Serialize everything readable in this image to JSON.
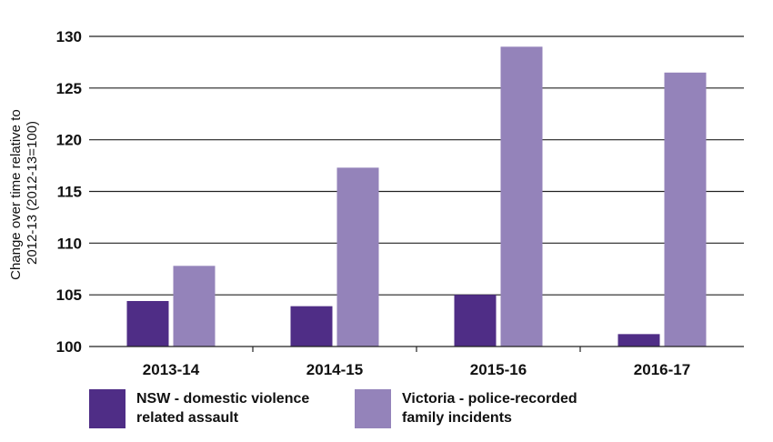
{
  "chart_data": {
    "type": "bar",
    "categories": [
      "2013-14",
      "2014-15",
      "2015-16",
      "2016-17"
    ],
    "series": [
      {
        "name": "NSW - domestic violence related assault",
        "color": "#4f2d86",
        "values": [
          104.4,
          103.9,
          105.0,
          101.2
        ]
      },
      {
        "name": "Victoria - police-recorded family incidents",
        "color": "#9483ba",
        "values": [
          107.8,
          117.3,
          129.0,
          126.5
        ]
      }
    ],
    "ylabel": "Change over time relative to 2012-13 (2012-13=100)",
    "ylabel_lines": [
      "Change over time relative to",
      "2012-13 (2012-13=100)"
    ],
    "ylim": [
      100,
      130
    ],
    "yticks": [
      100,
      105,
      110,
      115,
      120,
      125,
      130
    ],
    "grid": true,
    "legend_position": "bottom"
  },
  "legend": {
    "nsw_lines": [
      "NSW - domestic violence",
      "related assault"
    ],
    "vic_lines": [
      "Victoria - police-recorded",
      "family incidents"
    ]
  }
}
